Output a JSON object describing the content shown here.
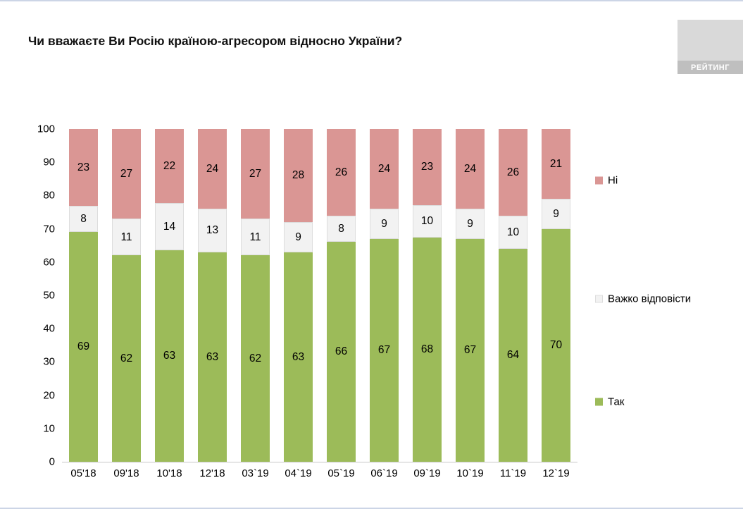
{
  "page": {
    "title": "Чи вважаєте Ви Росію країною-агресором відносно України?",
    "logo_text": "РЕЙТИНГ"
  },
  "chart_data": {
    "type": "bar",
    "stacked": true,
    "title": "Чи вважаєте Ви Росію країною-агресором відносно України?",
    "categories": [
      "05'18",
      "09'18",
      "10'18",
      "12'18",
      "03`19",
      "04`19",
      "05`19",
      "06`19",
      "09`19",
      "10`19",
      "11`19",
      "12`19"
    ],
    "series": [
      {
        "name": "Так",
        "color": "#9CBB59",
        "values": [
          69,
          62,
          63,
          63,
          62,
          63,
          66,
          67,
          68,
          67,
          64,
          70
        ]
      },
      {
        "name": "Важко відповісти",
        "color": "#F2F2F2",
        "border": "#DDDDDD",
        "values": [
          8,
          11,
          14,
          13,
          11,
          9,
          8,
          9,
          10,
          9,
          10,
          9
        ]
      },
      {
        "name": "Ні",
        "color": "#DA9694",
        "values": [
          23,
          27,
          22,
          24,
          27,
          28,
          26,
          24,
          23,
          24,
          26,
          21
        ]
      }
    ],
    "xlabel": "",
    "ylabel": "",
    "ylim": [
      0,
      100
    ],
    "ytick_step": 10,
    "grid": false,
    "legend_position": "right"
  }
}
